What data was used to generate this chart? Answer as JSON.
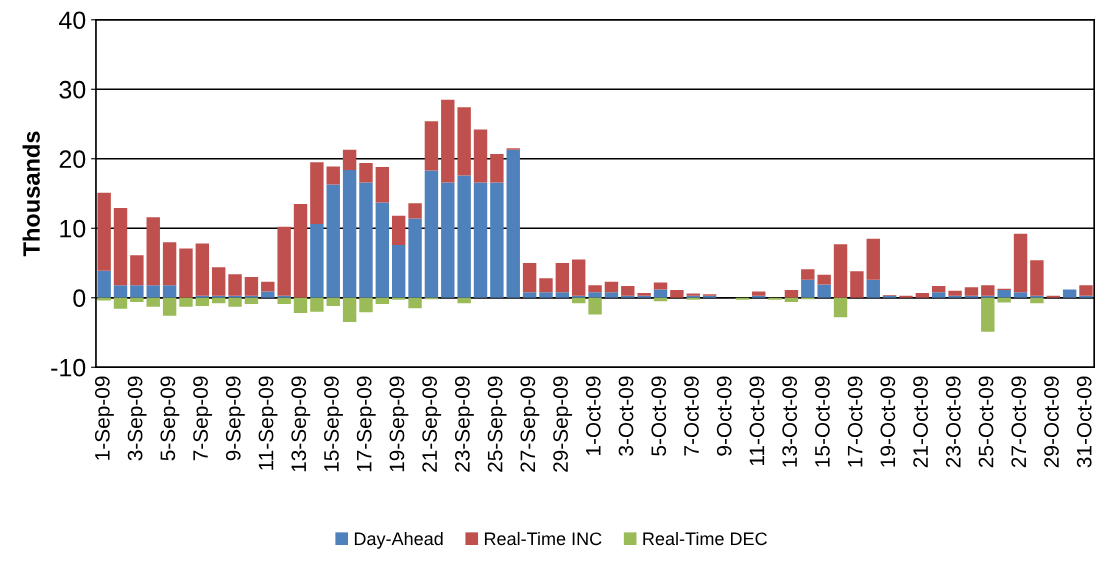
{
  "chart_data": {
    "type": "bar",
    "stacked": true,
    "ylabel": "Thousands",
    "categories": [
      "1-Sep-09",
      null,
      "3-Sep-09",
      null,
      "5-Sep-09",
      null,
      "7-Sep-09",
      null,
      "9-Sep-09",
      null,
      "11-Sep-09",
      null,
      "13-Sep-09",
      null,
      "15-Sep-09",
      null,
      "17-Sep-09",
      null,
      "19-Sep-09",
      null,
      "21-Sep-09",
      null,
      "23-Sep-09",
      null,
      "25-Sep-09",
      null,
      "27-Sep-09",
      null,
      "29-Sep-09",
      null,
      "1-Oct-09",
      null,
      "3-Oct-09",
      null,
      "5-Oct-09",
      null,
      "7-Oct-09",
      null,
      "9-Oct-09",
      null,
      "11-Oct-09",
      null,
      "13-Oct-09",
      null,
      "15-Oct-09",
      null,
      "17-Oct-09",
      null,
      "19-Oct-09",
      null,
      "21-Oct-09",
      null,
      "23-Oct-09",
      null,
      "25-Oct-09",
      null,
      "27-Oct-09",
      null,
      "29-Oct-09",
      null,
      "31-Oct-09"
    ],
    "series": [
      {
        "name": "Day-Ahead",
        "color": "#4f81bd",
        "values": [
          3.9,
          1.8,
          1.8,
          1.8,
          1.8,
          0,
          0.3,
          0.3,
          0.3,
          0.3,
          0.9,
          0.3,
          0,
          10.6,
          16.3,
          18.4,
          16.6,
          13.7,
          7.6,
          11.4,
          18.3,
          16.6,
          17.6,
          16.6,
          16.6,
          21.3,
          0.8,
          0.8,
          0.8,
          0.3,
          0.8,
          0.8,
          0.3,
          0.3,
          1.2,
          0,
          0.3,
          0.3,
          0,
          0,
          0.3,
          0,
          0,
          2.6,
          1.9,
          0,
          0,
          2.6,
          0.3,
          0,
          0,
          0.8,
          0.3,
          0.3,
          0.3,
          1.1,
          0.8,
          0.3,
          0,
          1.2,
          0.3
        ]
      },
      {
        "name": "Real-Time INC",
        "color": "#c0504d",
        "values": [
          11.2,
          11.1,
          4.3,
          9.8,
          6.2,
          7.1,
          7.5,
          4.1,
          3.1,
          2.7,
          1.4,
          9.9,
          13.5,
          8.9,
          2.6,
          2.9,
          2.8,
          5.1,
          4.2,
          2.2,
          7.1,
          11.9,
          9.8,
          7.6,
          4.1,
          0.2,
          4.2,
          2.0,
          4.2,
          5.2,
          1.0,
          1.5,
          1.4,
          0.4,
          1.0,
          1.1,
          0.3,
          0.2,
          0,
          0,
          0.6,
          0,
          1.1,
          1.5,
          1.4,
          7.7,
          3.8,
          5.9,
          0.1,
          0.3,
          0.7,
          0.9,
          0.7,
          1.2,
          1.5,
          0.2,
          8.4,
          5.1,
          0.3,
          0,
          1.5
        ]
      },
      {
        "name": "Real-Time DEC",
        "color": "#9bbb59",
        "values": [
          -0.4,
          -1.6,
          -0.6,
          -1.3,
          -2.6,
          -1.3,
          -1.2,
          -0.8,
          -1.3,
          -0.9,
          0,
          -0.9,
          -2.2,
          -2.0,
          -1.2,
          -3.5,
          -2.1,
          -0.9,
          -0.3,
          -1.5,
          -0.2,
          0,
          -0.8,
          0,
          0,
          0,
          0,
          0,
          0,
          -0.8,
          -2.4,
          0,
          0,
          0,
          -0.5,
          0,
          -0.3,
          0,
          0,
          -0.3,
          0,
          -0.3,
          -0.6,
          -0.2,
          0,
          -2.8,
          0,
          0,
          0,
          0,
          0,
          0,
          0,
          0,
          -4.9,
          -0.7,
          0,
          -0.8,
          0,
          0,
          0
        ]
      }
    ],
    "ylim": [
      -10,
      40
    ],
    "yticks": [
      -10,
      0,
      10,
      20,
      30,
      40
    ],
    "grid": "y",
    "legend": "bottom"
  }
}
